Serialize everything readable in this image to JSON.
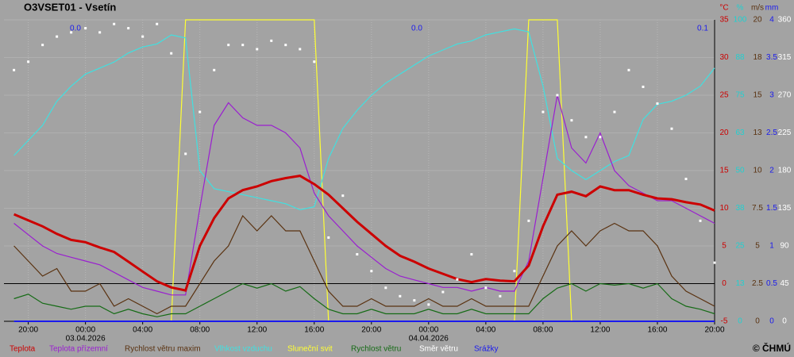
{
  "chart_data": {
    "type": "line",
    "title": "O3VSET01 - Vsetín",
    "copyright": "© ČHMÚ",
    "grid": true,
    "x": [
      -5,
      -4,
      -3,
      -2,
      -1,
      0,
      1,
      2,
      3,
      4,
      5,
      6,
      7,
      8,
      9,
      10,
      11,
      12,
      13,
      14,
      15,
      16,
      17,
      18,
      19,
      20,
      21,
      22,
      23,
      24,
      25,
      26,
      27,
      28,
      29,
      30,
      31,
      32,
      33,
      34,
      35,
      36,
      37,
      38,
      39,
      40,
      41,
      42,
      43,
      44
    ],
    "xlim": [
      -5.7,
      44
    ],
    "xticks": [
      {
        "value": -4,
        "label": "20:00"
      },
      {
        "value": 0,
        "label": "00:00"
      },
      {
        "value": 4,
        "label": "04:00"
      },
      {
        "value": 8,
        "label": "08:00"
      },
      {
        "value": 12,
        "label": "12:00"
      },
      {
        "value": 16,
        "label": "16:00"
      },
      {
        "value": 20,
        "label": "20:00"
      },
      {
        "value": 24,
        "label": "00:00"
      },
      {
        "value": 28,
        "label": "04:00"
      },
      {
        "value": 32,
        "label": "08:00"
      },
      {
        "value": 36,
        "label": "12:00"
      },
      {
        "value": 40,
        "label": "16:00"
      },
      {
        "value": 44,
        "label": "20:00"
      }
    ],
    "x_dates": [
      {
        "value": 0,
        "label": "03.04.2026"
      },
      {
        "value": 24,
        "label": "04.04.2026"
      }
    ],
    "y_unit": "°C",
    "ylim": [
      -5,
      35
    ],
    "yticks": [
      -5,
      0,
      5,
      10,
      15,
      20,
      25,
      30,
      35
    ],
    "y2_unit": "%",
    "y2lim": [
      0,
      100
    ],
    "y2ticks": [
      0,
      {
        "value": 12.5,
        "label": "13"
      },
      25,
      {
        "value": 37.5,
        "label": "38"
      },
      50,
      {
        "value": 62.5,
        "label": "63"
      },
      75,
      {
        "value": 87.5,
        "label": "88"
      },
      100
    ],
    "y3_unit": "m/s",
    "y3lim": [
      0,
      20
    ],
    "y3ticks": [
      0,
      2.5,
      5,
      7.5,
      10,
      {
        "value": 12.5,
        "label": "13"
      },
      15,
      {
        "value": 17.5,
        "label": "18"
      },
      20
    ],
    "y4_unit": "mm",
    "y4lim": [
      0,
      4
    ],
    "y4ticks": [
      0,
      0.5,
      1,
      1.5,
      2,
      2.5,
      3,
      3.5,
      4
    ],
    "y5lim": [
      0,
      360
    ],
    "y5ticks": [
      0,
      45,
      90,
      135,
      180,
      225,
      270,
      315,
      360
    ],
    "annotations": [
      "0.0",
      "0.0",
      "0.1"
    ],
    "series": [
      {
        "name": "Teplota",
        "color": "#cc0000",
        "axis": "y",
        "values": [
          9.2,
          8.4,
          7.6,
          6.6,
          5.8,
          5.5,
          4.8,
          4.2,
          2.9,
          1.6,
          0.3,
          -0.5,
          -0.9,
          5.0,
          8.7,
          11.3,
          12.4,
          12.9,
          13.6,
          14.0,
          14.3,
          13.2,
          11.8,
          10.0,
          8.2,
          6.6,
          5.0,
          3.7,
          2.9,
          2.0,
          1.3,
          0.6,
          0.2,
          0.6,
          0.4,
          0.3,
          2.4,
          7.6,
          11.8,
          12.2,
          11.6,
          12.9,
          12.4,
          12.4,
          11.8,
          11.3,
          11.2,
          10.8,
          10.5,
          9.7
        ]
      },
      {
        "name": "Teplota přízemní",
        "color": "#9a1fd0",
        "axis": "y",
        "values": [
          8,
          6.5,
          5,
          4,
          3.5,
          3,
          2.5,
          1.5,
          0.5,
          -0.5,
          -1,
          -1.5,
          -1.5,
          10,
          21,
          24,
          22,
          21,
          21,
          20,
          18,
          12,
          9,
          7,
          5,
          3.5,
          2,
          1,
          0.5,
          0,
          -0.5,
          -0.5,
          -1,
          -0.5,
          -1,
          -1,
          3,
          14,
          25,
          18,
          16,
          20,
          15,
          13,
          12,
          11,
          11,
          10,
          9,
          8
        ]
      },
      {
        "name": "Rychlost větru maxim",
        "color": "#5a3210",
        "axis": "y3",
        "values": [
          5,
          4,
          3,
          3.5,
          2,
          2,
          2.5,
          1,
          1.5,
          1,
          0.5,
          1,
          1,
          2.5,
          4,
          5,
          7,
          6,
          7,
          6,
          6,
          4,
          2,
          1,
          1,
          1.5,
          1,
          1,
          1,
          1.5,
          1,
          1,
          1.5,
          1,
          1,
          1,
          1,
          3,
          5,
          6,
          5,
          6,
          6.5,
          6,
          6,
          5,
          3,
          2,
          1.5,
          1
        ]
      },
      {
        "name": "Vlhkost vzduchu",
        "color": "#40e0e0",
        "axis": "y2",
        "values": [
          55,
          60,
          65,
          73,
          78,
          82,
          84,
          86,
          89,
          91,
          92,
          95,
          94,
          50,
          44,
          43,
          42,
          41,
          40,
          39,
          37,
          38,
          54,
          64,
          70,
          75,
          79,
          82,
          85,
          88,
          90,
          92,
          93,
          95,
          96,
          97,
          96,
          78,
          54,
          50,
          47,
          50,
          53,
          55,
          67,
          72,
          73,
          75,
          78,
          84
        ]
      },
      {
        "name": "Sluneční svit",
        "color": "#ffff33",
        "axis": "y2",
        "values": [
          0,
          0,
          0,
          0,
          0,
          0,
          0,
          0,
          0,
          0,
          0,
          0,
          100,
          100,
          100,
          100,
          100,
          100,
          100,
          100,
          100,
          100,
          0,
          0,
          0,
          0,
          0,
          0,
          0,
          0,
          0,
          0,
          0,
          0,
          0,
          0,
          100,
          100,
          100,
          0,
          0,
          0,
          0,
          0,
          0,
          0,
          0,
          0,
          0,
          0
        ]
      },
      {
        "name": "Rychlost větru",
        "color": "#156b15",
        "axis": "y3",
        "values": [
          1.5,
          1.8,
          1.2,
          1,
          0.8,
          1,
          1,
          0.5,
          0.8,
          0.5,
          0.3,
          0.5,
          0.5,
          1,
          1.5,
          2,
          2.5,
          2.2,
          2.5,
          2,
          2.3,
          1.5,
          0.8,
          0.5,
          0.5,
          0.8,
          0.5,
          0.5,
          0.5,
          0.8,
          0.5,
          0.5,
          0.8,
          0.5,
          0.5,
          0.5,
          0.5,
          1.5,
          2.2,
          2.5,
          2,
          2.5,
          2.4,
          2.5,
          2.2,
          2.5,
          1.5,
          1,
          0.8,
          0.5
        ]
      },
      {
        "name": "Směr větru",
        "color": "#ffffff",
        "axis": "y5",
        "type": "scatter",
        "values": [
          300,
          310,
          330,
          340,
          345,
          350,
          345,
          355,
          350,
          340,
          355,
          320,
          200,
          250,
          300,
          330,
          330,
          325,
          335,
          330,
          325,
          310,
          100,
          150,
          80,
          60,
          40,
          30,
          25,
          20,
          35,
          50,
          80,
          40,
          30,
          60,
          120,
          250,
          270,
          240,
          220,
          220,
          250,
          300,
          280,
          260,
          230,
          170,
          120,
          70
        ]
      },
      {
        "name": "Srážky",
        "color": "#1a1aee",
        "axis": "y4",
        "values": [
          0,
          0,
          0,
          0,
          0,
          0,
          0,
          0,
          0,
          0,
          0,
          0,
          0,
          0,
          0,
          0,
          0,
          0,
          0,
          0,
          0,
          0,
          0,
          0,
          0,
          0,
          0,
          0,
          0,
          0,
          0,
          0,
          0,
          0,
          0,
          0,
          0,
          0,
          0,
          0,
          0,
          0,
          0,
          0,
          0,
          0,
          0,
          0,
          0,
          0
        ]
      }
    ]
  }
}
